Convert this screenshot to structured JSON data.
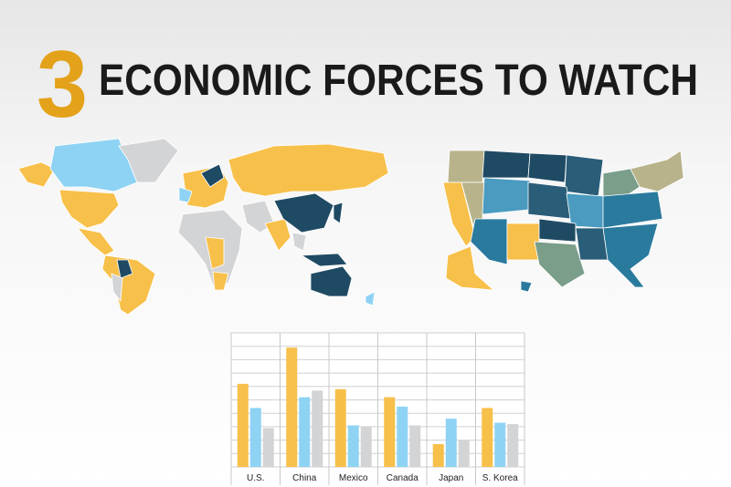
{
  "header": {
    "number": "3",
    "title": "ECONOMIC FORCES TO WATCH"
  },
  "chart_data": {
    "type": "bar",
    "categories": [
      "U.S.",
      "China",
      "Mexico",
      "Canada",
      "Japan",
      "S. Korea"
    ],
    "series": [
      {
        "color": "#f7c04a",
        "values": [
          6.2,
          8.9,
          5.8,
          5.2,
          1.7,
          4.4
        ]
      },
      {
        "color": "#8fd3f4",
        "values": [
          4.4,
          5.2,
          3.1,
          4.5,
          3.6,
          3.3
        ]
      },
      {
        "color": "#d3d4d6",
        "values": [
          2.9,
          5.7,
          3.0,
          3.1,
          2.0,
          3.2
        ]
      }
    ],
    "ylim": [
      0,
      10
    ],
    "yticks": [
      0,
      1,
      2,
      3,
      4,
      5,
      6,
      7,
      8,
      9,
      10
    ],
    "grid": true
  }
}
